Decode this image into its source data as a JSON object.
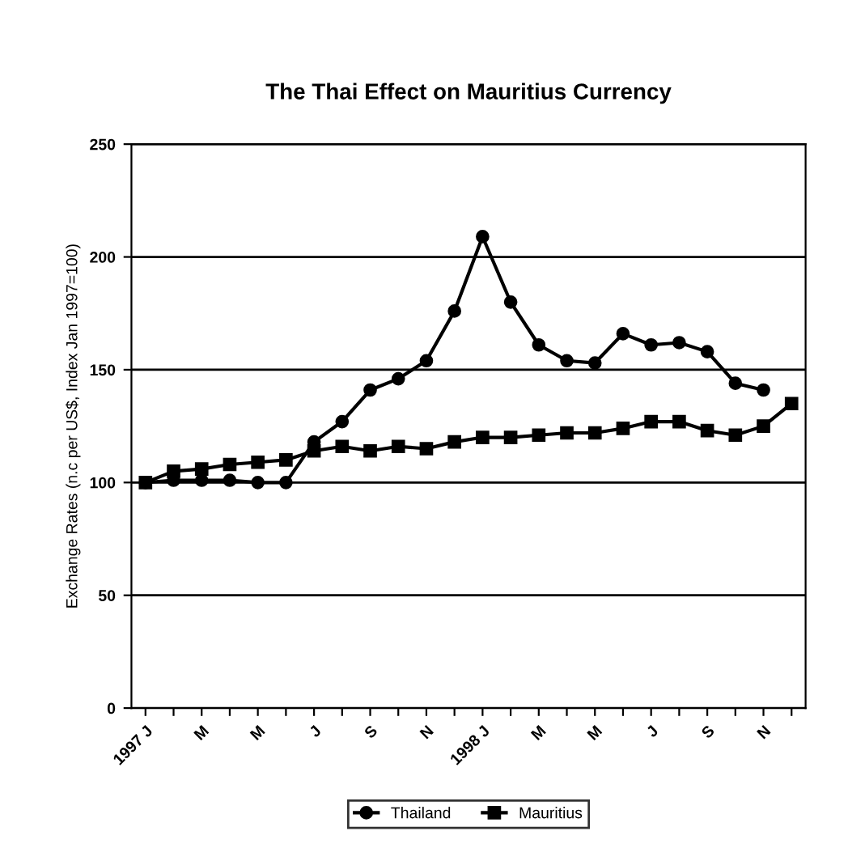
{
  "chart_data": {
    "type": "line",
    "title": "The Thai Effect on Mauritius Currency",
    "ylabel": "Exchange Rates (n.c per US$, Index Jan 1997=100)",
    "categories": [
      "1997 J",
      null,
      "M",
      null,
      "M",
      null,
      "J",
      null,
      "S",
      null,
      "N",
      null,
      "1998 J",
      null,
      "M",
      null,
      "M",
      null,
      "J",
      null,
      "S",
      null,
      "N",
      null
    ],
    "series": [
      {
        "name": "Thailand",
        "color": "#000000",
        "marker": "circle",
        "values": [
          100,
          101,
          101,
          101,
          100,
          100,
          118,
          127,
          141,
          146,
          154,
          176,
          209,
          180,
          161,
          154,
          153,
          166,
          161,
          162,
          158,
          144,
          141,
          null
        ]
      },
      {
        "name": "Mauritius",
        "color": "#000000",
        "marker": "square",
        "values": [
          100,
          105,
          106,
          108,
          109,
          110,
          114,
          116,
          114,
          116,
          115,
          118,
          120,
          120,
          121,
          122,
          122,
          124,
          127,
          127,
          123,
          121,
          125,
          135
        ]
      }
    ],
    "ylim": [
      0,
      250
    ],
    "yticks": [
      0,
      50,
      100,
      150,
      200,
      250
    ],
    "grid": "y",
    "legend": "bottom",
    "line_style": "solid"
  }
}
